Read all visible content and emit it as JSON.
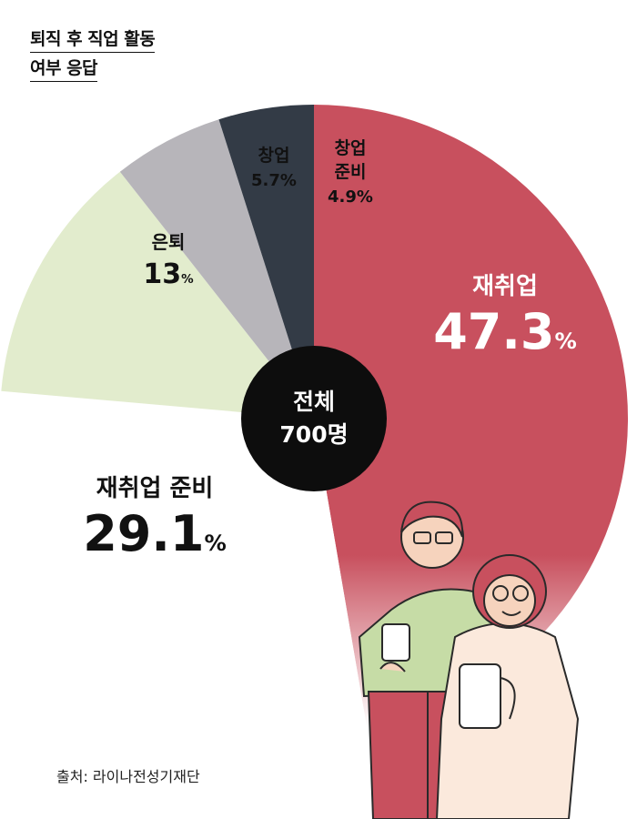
{
  "title": {
    "line1": "퇴직 후 직업 활동",
    "line2": "여부 응답"
  },
  "center": {
    "label": "전체",
    "value": "700명"
  },
  "source": "출처: 라이나전성기재단",
  "chart_data": {
    "type": "pie",
    "categories": [
      "재취업",
      "재취업 준비",
      "은퇴",
      "창업",
      "창업 준비"
    ],
    "values": [
      47.3,
      29.1,
      13,
      5.7,
      4.9
    ],
    "unit": "%",
    "labels": {
      "re_employment": {
        "name": "재취업",
        "value": "47.3",
        "unit": "%"
      },
      "re_employment_prep": {
        "name": "재취업 준비",
        "value": "29.1",
        "unit": "%"
      },
      "retired": {
        "name": "은퇴",
        "value": "13",
        "unit": "%"
      },
      "startup": {
        "name": "창업",
        "value": "5.7%"
      },
      "startup_prep": {
        "name1": "창업",
        "name2": "준비",
        "value": "4.9%"
      }
    },
    "colors": [
      "#c8505e",
      "#ffffff",
      "#e2eccd",
      "#b7b5ba",
      "#333b46"
    ],
    "center_color": "#0d0d0d"
  }
}
